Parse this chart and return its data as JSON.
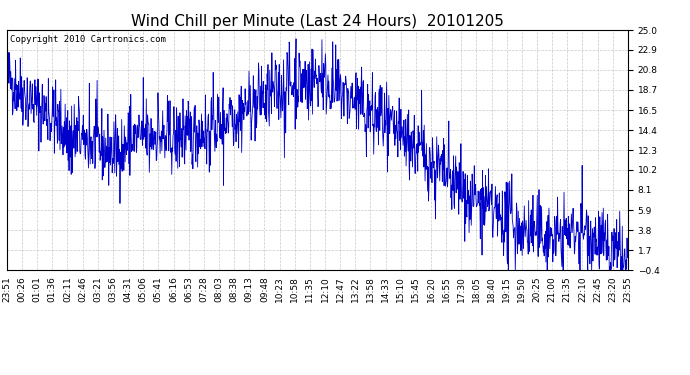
{
  "title": "Wind Chill per Minute (Last 24 Hours)  20101205",
  "copyright_text": "Copyright 2010 Cartronics.com",
  "line_color": "#0000cc",
  "background_color": "#ffffff",
  "grid_color": "#bbbbbb",
  "yticks": [
    -0.4,
    1.7,
    3.8,
    5.9,
    8.1,
    10.2,
    12.3,
    14.4,
    16.5,
    18.7,
    20.8,
    22.9,
    25.0
  ],
  "ylim": [
    -0.4,
    25.0
  ],
  "xtick_labels": [
    "23:51",
    "00:26",
    "01:01",
    "01:36",
    "02:11",
    "02:46",
    "03:21",
    "03:56",
    "04:31",
    "05:06",
    "05:41",
    "06:16",
    "06:53",
    "07:28",
    "08:03",
    "08:38",
    "09:13",
    "09:48",
    "10:23",
    "10:58",
    "11:35",
    "12:10",
    "12:47",
    "13:22",
    "13:58",
    "14:33",
    "15:10",
    "15:45",
    "16:20",
    "16:55",
    "17:30",
    "18:05",
    "18:40",
    "19:15",
    "19:50",
    "20:25",
    "21:00",
    "21:35",
    "22:10",
    "22:45",
    "23:20",
    "23:55"
  ],
  "title_fontsize": 11,
  "copyright_fontsize": 6.5,
  "tick_fontsize": 6.5,
  "figsize": [
    6.9,
    3.75
  ],
  "dpi": 100
}
